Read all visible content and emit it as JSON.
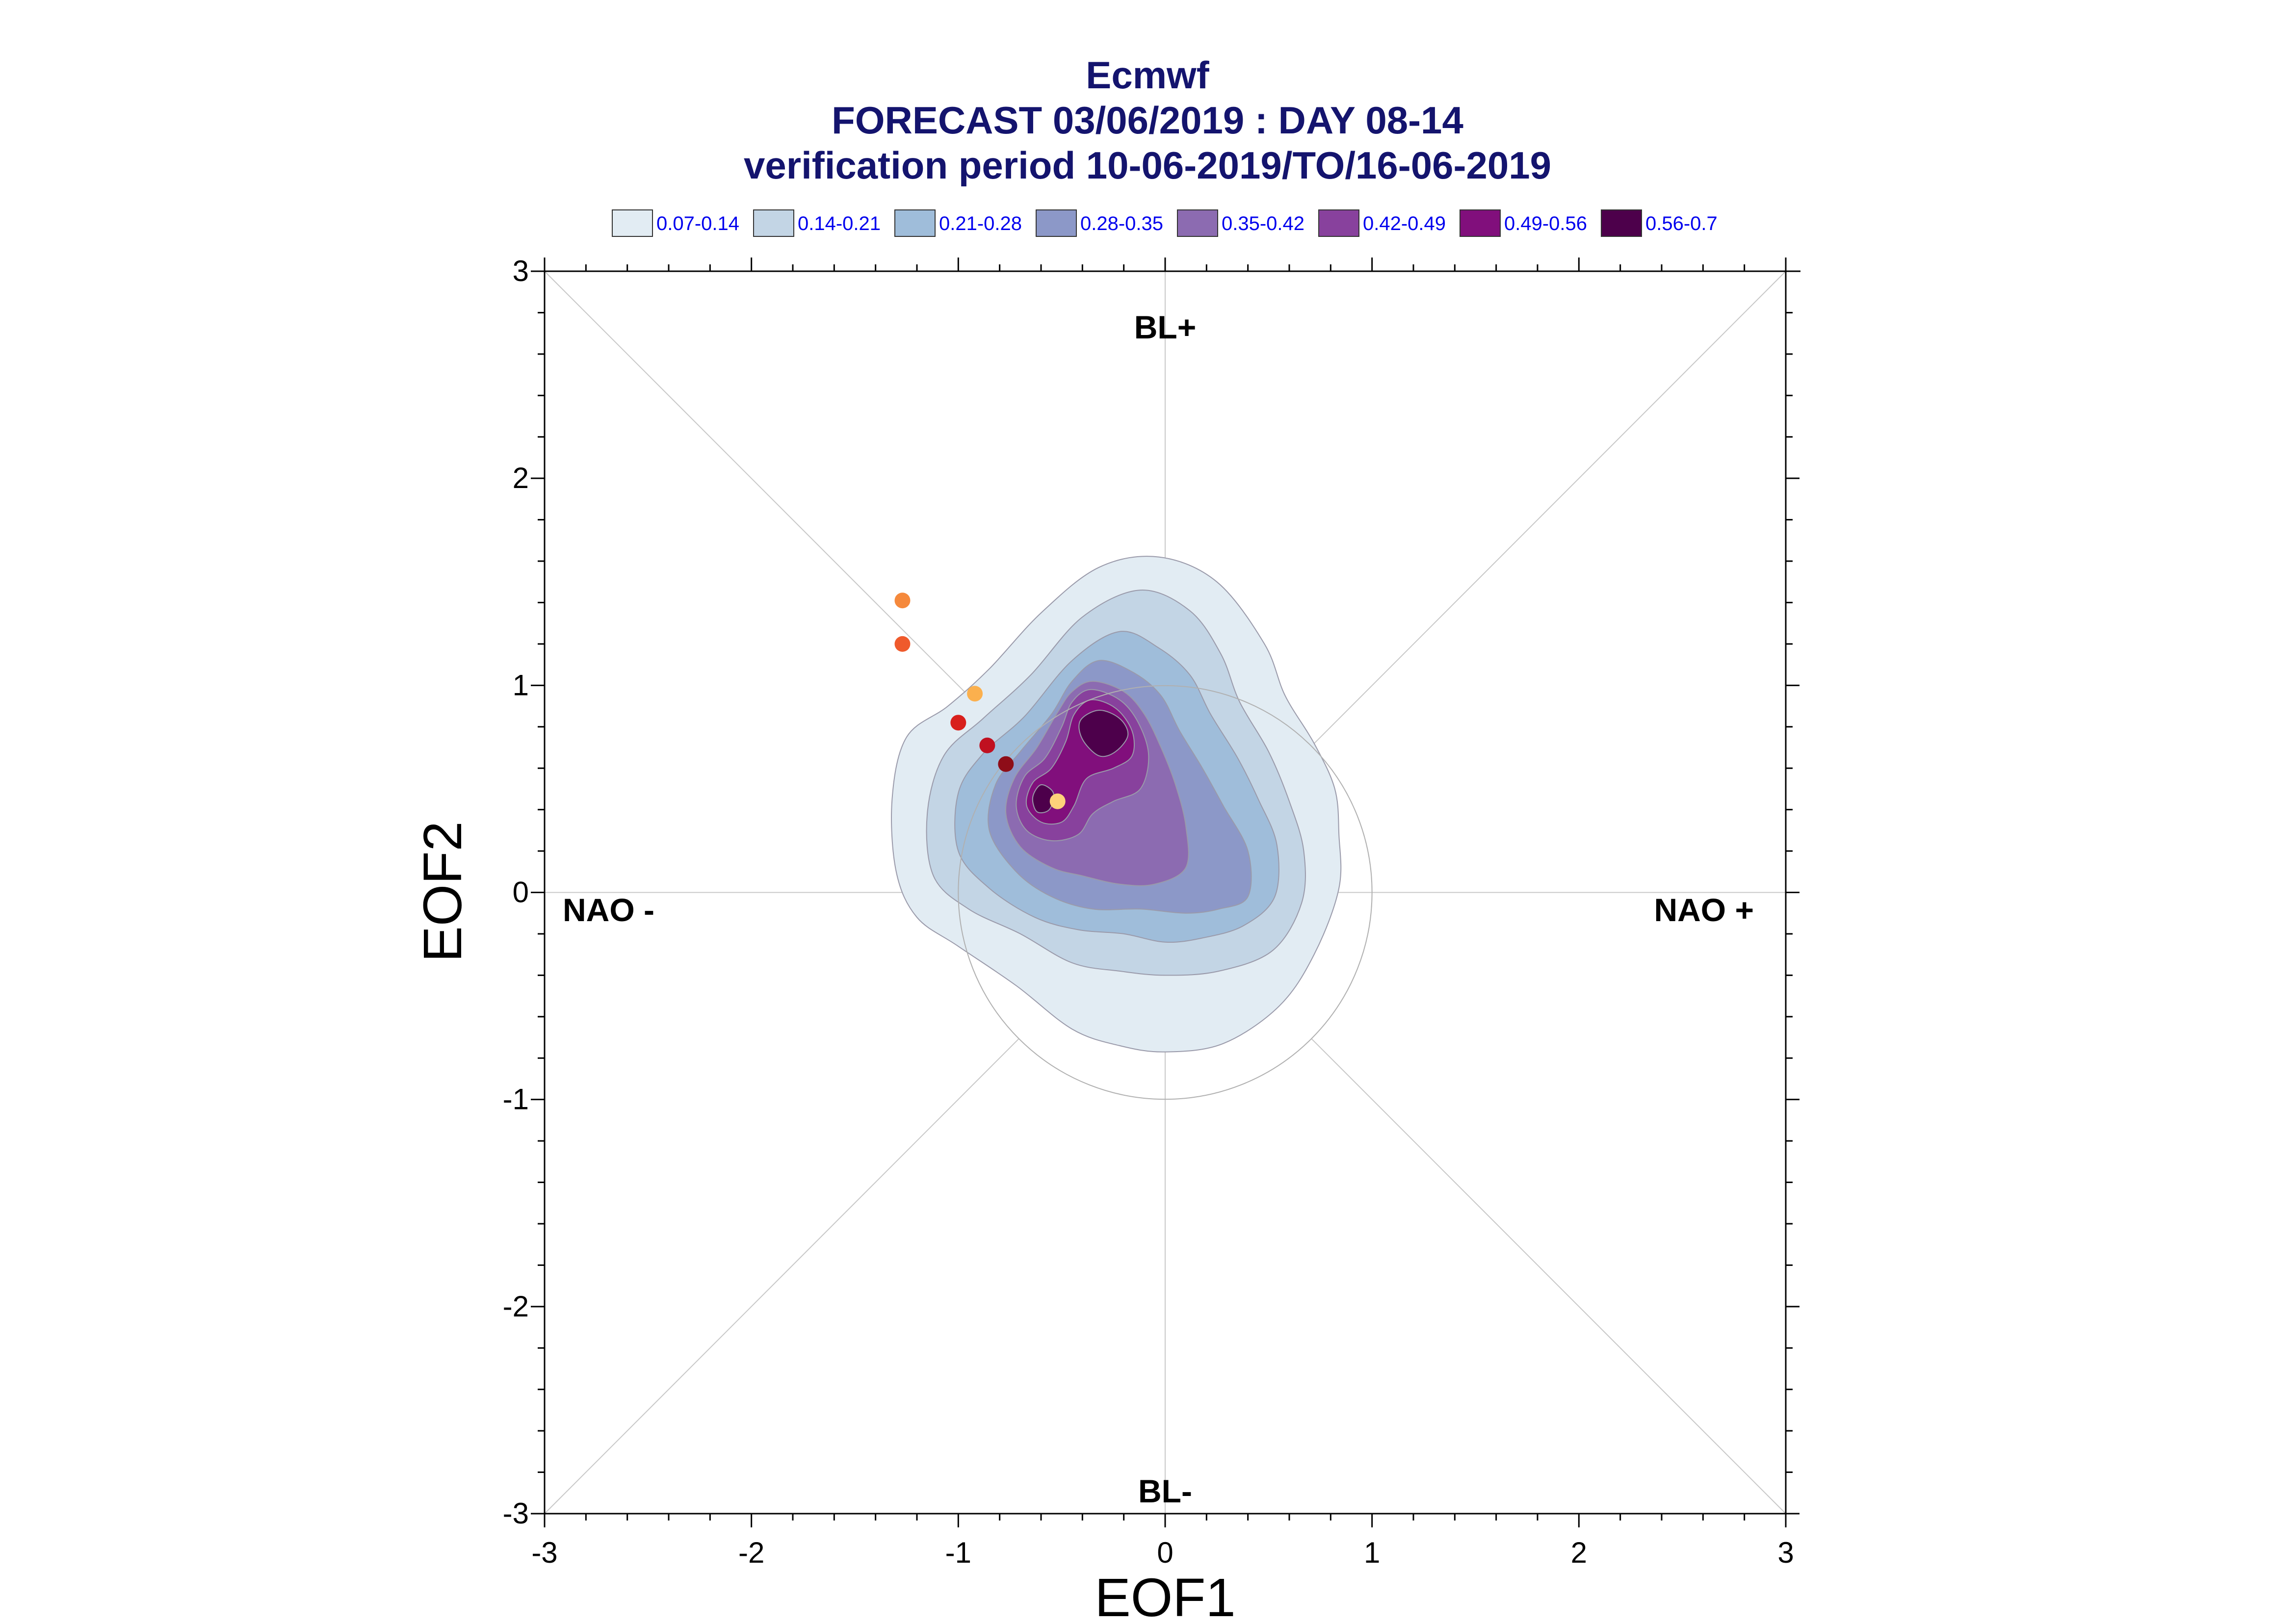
{
  "titles": {
    "line1": "Ecmwf",
    "line2": "FORECAST 03/06/2019 : DAY 08-14",
    "line3": "verification period 10-06-2019/TO/16-06-2019"
  },
  "chart_data": {
    "type": "scatter",
    "xlabel": "EOF1",
    "ylabel": "EOF2",
    "xlim": [
      -3,
      3
    ],
    "ylim": [
      -3,
      3
    ],
    "xticks": [
      "-3",
      "-2",
      "-1",
      "0",
      "1",
      "2",
      "3"
    ],
    "yticks": [
      "-3",
      "-2",
      "-1",
      "0",
      "1",
      "2",
      "3"
    ],
    "regime_labels": {
      "top": "BL+",
      "bottom": "BL-",
      "left": "NAO -",
      "right": "NAO +"
    },
    "legend": [
      {
        "label": "0.07-0.14",
        "color": "#e2ecf3"
      },
      {
        "label": "0.14-0.21",
        "color": "#c3d5e5"
      },
      {
        "label": "0.21-0.28",
        "color": "#9fbdda"
      },
      {
        "label": "0.28-0.35",
        "color": "#8c98c8"
      },
      {
        "label": "0.35-0.42",
        "color": "#8c6bb1"
      },
      {
        "label": "0.42-0.49",
        "color": "#88419d"
      },
      {
        "label": "0.49-0.56",
        "color": "#810f7c"
      },
      {
        "label": "0.56-0.7",
        "color": "#4d004b"
      }
    ],
    "unit_circle_radius": 1,
    "points": [
      {
        "x": -1.27,
        "y": 1.41,
        "color": "#f5893c"
      },
      {
        "x": -1.27,
        "y": 1.2,
        "color": "#ef5a2c"
      },
      {
        "x": -0.92,
        "y": 0.96,
        "color": "#fbb04e"
      },
      {
        "x": -1.0,
        "y": 0.82,
        "color": "#d8201c"
      },
      {
        "x": -0.86,
        "y": 0.71,
        "color": "#c01020"
      },
      {
        "x": -0.77,
        "y": 0.62,
        "color": "#8e0d18"
      },
      {
        "x": -0.52,
        "y": 0.44,
        "color": "#fdd27a"
      }
    ],
    "density_contours": [
      {
        "level": "0.07-0.14",
        "color": "#e2ecf3",
        "points": [
          [
            -0.03,
            1.62
          ],
          [
            0.25,
            1.5
          ],
          [
            0.48,
            1.2
          ],
          [
            0.58,
            0.95
          ],
          [
            0.72,
            0.72
          ],
          [
            0.82,
            0.5
          ],
          [
            0.84,
            0.28
          ],
          [
            0.84,
            0.02
          ],
          [
            0.72,
            -0.3
          ],
          [
            0.55,
            -0.55
          ],
          [
            0.28,
            -0.73
          ],
          [
            0.0,
            -0.77
          ],
          [
            -0.22,
            -0.74
          ],
          [
            -0.45,
            -0.66
          ],
          [
            -0.72,
            -0.45
          ],
          [
            -1.0,
            -0.26
          ],
          [
            -1.2,
            -0.12
          ],
          [
            -1.3,
            0.1
          ],
          [
            -1.32,
            0.45
          ],
          [
            -1.25,
            0.75
          ],
          [
            -1.05,
            0.9
          ],
          [
            -0.85,
            1.08
          ],
          [
            -0.6,
            1.35
          ],
          [
            -0.32,
            1.57
          ]
        ]
      },
      {
        "level": "0.14-0.21",
        "color": "#c3d5e5",
        "points": [
          [
            -0.12,
            1.46
          ],
          [
            0.12,
            1.36
          ],
          [
            0.27,
            1.15
          ],
          [
            0.36,
            0.92
          ],
          [
            0.5,
            0.68
          ],
          [
            0.6,
            0.44
          ],
          [
            0.67,
            0.2
          ],
          [
            0.66,
            -0.05
          ],
          [
            0.52,
            -0.28
          ],
          [
            0.26,
            -0.38
          ],
          [
            0.0,
            -0.4
          ],
          [
            -0.22,
            -0.38
          ],
          [
            -0.45,
            -0.34
          ],
          [
            -0.7,
            -0.2
          ],
          [
            -0.95,
            -0.08
          ],
          [
            -1.12,
            0.08
          ],
          [
            -1.15,
            0.38
          ],
          [
            -1.07,
            0.66
          ],
          [
            -0.88,
            0.84
          ],
          [
            -0.65,
            1.05
          ],
          [
            -0.4,
            1.33
          ]
        ]
      },
      {
        "level": "0.21-0.28",
        "color": "#9fbdda",
        "points": [
          [
            -0.22,
            1.26
          ],
          [
            -0.03,
            1.18
          ],
          [
            0.12,
            1.05
          ],
          [
            0.22,
            0.86
          ],
          [
            0.35,
            0.65
          ],
          [
            0.45,
            0.45
          ],
          [
            0.54,
            0.23
          ],
          [
            0.53,
            -0.02
          ],
          [
            0.38,
            -0.16
          ],
          [
            0.18,
            -0.22
          ],
          [
            0.0,
            -0.24
          ],
          [
            -0.2,
            -0.2
          ],
          [
            -0.42,
            -0.18
          ],
          [
            -0.63,
            -0.12
          ],
          [
            -0.85,
            0.02
          ],
          [
            -1.0,
            0.2
          ],
          [
            -1.0,
            0.48
          ],
          [
            -0.88,
            0.67
          ],
          [
            -0.68,
            0.85
          ],
          [
            -0.45,
            1.12
          ]
        ]
      },
      {
        "level": "0.28-0.35",
        "color": "#8c98c8",
        "points": [
          [
            -0.32,
            1.12
          ],
          [
            -0.15,
            1.06
          ],
          [
            -0.02,
            0.95
          ],
          [
            0.07,
            0.78
          ],
          [
            0.18,
            0.6
          ],
          [
            0.28,
            0.42
          ],
          [
            0.4,
            0.2
          ],
          [
            0.4,
            -0.02
          ],
          [
            0.26,
            -0.08
          ],
          [
            0.1,
            -0.1
          ],
          [
            -0.12,
            -0.08
          ],
          [
            -0.35,
            -0.08
          ],
          [
            -0.55,
            -0.02
          ],
          [
            -0.72,
            0.1
          ],
          [
            -0.85,
            0.3
          ],
          [
            -0.82,
            0.52
          ],
          [
            -0.7,
            0.68
          ],
          [
            -0.55,
            0.86
          ],
          [
            -0.45,
            1.02
          ]
        ]
      },
      {
        "level": "0.35-0.42",
        "color": "#8c6bb1",
        "points": [
          [
            -0.35,
            1.02
          ],
          [
            -0.2,
            0.97
          ],
          [
            -0.1,
            0.86
          ],
          [
            -0.02,
            0.7
          ],
          [
            0.05,
            0.52
          ],
          [
            0.1,
            0.32
          ],
          [
            0.1,
            0.12
          ],
          [
            -0.05,
            0.04
          ],
          [
            -0.22,
            0.04
          ],
          [
            -0.4,
            0.08
          ],
          [
            -0.55,
            0.12
          ],
          [
            -0.7,
            0.22
          ],
          [
            -0.77,
            0.38
          ],
          [
            -0.73,
            0.55
          ],
          [
            -0.62,
            0.7
          ],
          [
            -0.52,
            0.87
          ],
          [
            -0.45,
            0.97
          ]
        ]
      },
      {
        "level": "0.42-0.49",
        "color": "#88419d",
        "points": [
          [
            -0.36,
            0.98
          ],
          [
            -0.22,
            0.93
          ],
          [
            -0.13,
            0.82
          ],
          [
            -0.08,
            0.66
          ],
          [
            -0.12,
            0.5
          ],
          [
            -0.25,
            0.44
          ],
          [
            -0.35,
            0.38
          ],
          [
            -0.42,
            0.28
          ],
          [
            -0.55,
            0.25
          ],
          [
            -0.67,
            0.3
          ],
          [
            -0.72,
            0.42
          ],
          [
            -0.68,
            0.56
          ],
          [
            -0.58,
            0.65
          ],
          [
            -0.5,
            0.8
          ],
          [
            -0.45,
            0.92
          ]
        ]
      },
      {
        "level": "0.49-0.56",
        "color": "#810f7c",
        "points": [
          [
            -0.36,
            0.93
          ],
          [
            -0.24,
            0.89
          ],
          [
            -0.16,
            0.78
          ],
          [
            -0.16,
            0.66
          ],
          [
            -0.25,
            0.6
          ],
          [
            -0.38,
            0.55
          ],
          [
            -0.44,
            0.42
          ],
          [
            -0.5,
            0.34
          ],
          [
            -0.6,
            0.34
          ],
          [
            -0.67,
            0.42
          ],
          [
            -0.64,
            0.53
          ],
          [
            -0.55,
            0.6
          ],
          [
            -0.48,
            0.73
          ],
          [
            -0.44,
            0.86
          ]
        ]
      },
      {
        "level": "0.56-0.7",
        "color": "#4d004b",
        "points": [
          [
            -0.32,
            0.88
          ],
          [
            -0.22,
            0.84
          ],
          [
            -0.18,
            0.76
          ],
          [
            -0.24,
            0.68
          ],
          [
            -0.32,
            0.66
          ],
          [
            -0.4,
            0.74
          ],
          [
            -0.41,
            0.83
          ]
        ]
      },
      {
        "level": "0.56-0.7",
        "color": "#4d004b",
        "points": [
          [
            -0.6,
            0.52
          ],
          [
            -0.54,
            0.48
          ],
          [
            -0.56,
            0.4
          ],
          [
            -0.62,
            0.39
          ],
          [
            -0.64,
            0.46
          ]
        ]
      }
    ]
  }
}
